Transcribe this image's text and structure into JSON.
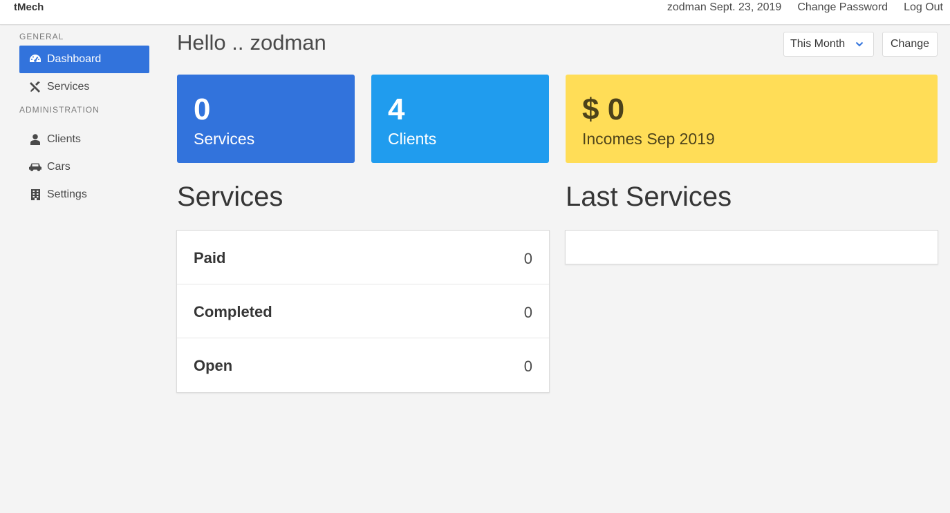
{
  "navbar": {
    "brand": "tMech",
    "user_date": "zodman Sept. 23, 2019",
    "change_password": "Change Password",
    "logout": "Log Out"
  },
  "sidebar": {
    "general_label": "GENERAL",
    "admin_label": "ADMINISTRATION",
    "items": [
      {
        "label": "Dashboard",
        "icon": "tachometer-icon"
      },
      {
        "label": "Services",
        "icon": "tools-icon"
      },
      {
        "label": "Clients",
        "icon": "user-icon"
      },
      {
        "label": "Cars",
        "icon": "car-icon"
      },
      {
        "label": "Settings",
        "icon": "building-icon"
      }
    ]
  },
  "header": {
    "greeting": "Hello ..",
    "username": "zodman",
    "period_value": "This Month",
    "change_label": "Change"
  },
  "stats": {
    "services": {
      "value": "0",
      "label": "Services"
    },
    "clients": {
      "value": "4",
      "label": "Clients"
    },
    "income": {
      "value": "$ 0",
      "label": "Incomes Sep 2019"
    }
  },
  "services_section": {
    "title": "Services",
    "rows": [
      {
        "name": "Paid",
        "value": "0"
      },
      {
        "name": "Completed",
        "value": "0"
      },
      {
        "name": "Open",
        "value": "0"
      }
    ]
  },
  "last_services": {
    "title": "Last Services"
  },
  "colors": {
    "primary": "#3273dc",
    "info": "#209cee",
    "warning": "#ffdd57",
    "background": "#f4f4f4"
  }
}
